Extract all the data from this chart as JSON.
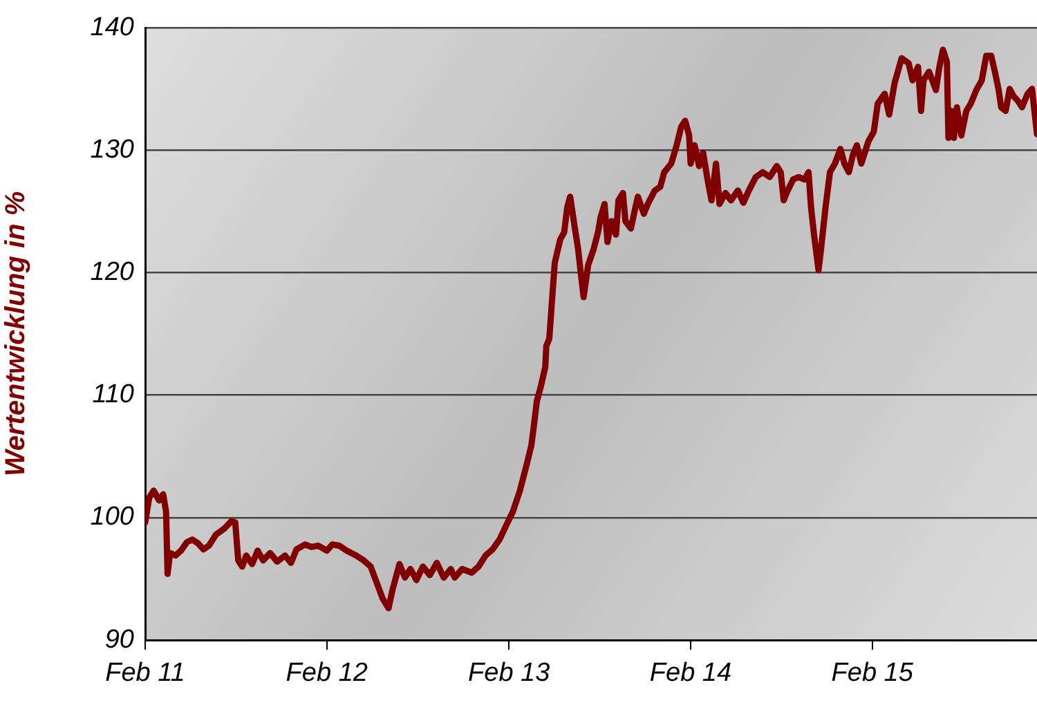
{
  "chart_data": {
    "type": "line",
    "ylabel": "Wertentwicklung in %",
    "x": [
      "2011-02-01",
      "2011-02-09",
      "2011-02-18",
      "2011-03-01",
      "2011-03-09",
      "2011-03-15",
      "2011-03-18",
      "2011-03-23",
      "2011-04-03",
      "2011-04-14",
      "2011-04-26",
      "2011-05-07",
      "2011-05-18",
      "2011-05-29",
      "2011-06-09",
      "2011-06-23",
      "2011-07-10",
      "2011-07-24",
      "2011-08-01",
      "2011-08-07",
      "2011-08-15",
      "2011-08-23",
      "2011-09-04",
      "2011-09-15",
      "2011-09-26",
      "2011-10-10",
      "2011-10-24",
      "2011-11-09",
      "2011-11-21",
      "2011-12-02",
      "2011-12-19",
      "2012-01-01",
      "2012-01-15",
      "2012-02-01",
      "2012-02-12",
      "2012-02-26",
      "2012-03-12",
      "2012-03-31",
      "2012-04-15",
      "2012-04-29",
      "2012-05-12",
      "2012-05-23",
      "2012-06-04",
      "2012-06-12",
      "2012-06-26",
      "2012-07-07",
      "2012-07-18",
      "2012-07-30",
      "2012-08-12",
      "2012-08-26",
      "2012-09-09",
      "2012-09-23",
      "2012-10-07",
      "2012-10-15",
      "2012-10-30",
      "2012-11-18",
      "2012-12-02",
      "2012-12-16",
      "2012-12-30",
      "2013-01-13",
      "2013-01-27",
      "2013-02-09",
      "2013-02-23",
      "2013-03-09",
      "2013-03-18",
      "2013-03-24",
      "2013-03-29",
      "2013-04-06",
      "2013-04-15",
      "2013-04-17",
      "2013-04-23",
      "2013-04-29",
      "2013-05-04",
      "2013-05-15",
      "2013-05-23",
      "2013-05-29",
      "2013-06-04",
      "2013-06-12",
      "2013-06-20",
      "2013-06-26",
      "2013-07-01",
      "2013-07-10",
      "2013-07-21",
      "2013-07-30",
      "2013-08-04",
      "2013-08-12",
      "2013-08-18",
      "2013-08-26",
      "2013-09-04",
      "2013-09-09",
      "2013-09-18",
      "2013-09-23",
      "2013-10-04",
      "2013-10-13",
      "2013-10-18",
      "2013-10-30",
      "2013-11-07",
      "2013-11-21",
      "2013-12-02",
      "2013-12-10",
      "2013-12-24",
      "2014-01-04",
      "2014-01-13",
      "2014-01-21",
      "2014-01-29",
      "2014-02-01",
      "2014-02-09",
      "2014-02-18",
      "2014-02-26",
      "2014-03-07",
      "2014-03-15",
      "2014-03-24",
      "2014-03-31",
      "2014-04-12",
      "2014-04-23",
      "2014-05-07",
      "2014-05-18",
      "2014-05-29",
      "2014-06-12",
      "2014-06-26",
      "2014-07-10",
      "2014-07-24",
      "2014-08-01",
      "2014-08-07",
      "2014-08-15",
      "2014-08-26",
      "2014-09-06",
      "2014-09-18",
      "2014-09-26",
      "2014-10-01",
      "2014-10-07",
      "2014-10-16",
      "2014-10-21",
      "2014-10-30",
      "2014-11-08",
      "2014-11-18",
      "2014-11-29",
      "2014-12-07",
      "2014-12-16",
      "2014-12-24",
      "2015-01-01",
      "2015-01-10",
      "2015-01-24",
      "2015-02-04",
      "2015-02-12",
      "2015-02-26",
      "2015-03-07",
      "2015-03-18",
      "2015-04-01",
      "2015-04-15",
      "2015-04-23",
      "2015-05-04",
      "2015-05-10",
      "2015-05-15",
      "2015-05-26",
      "2015-06-09",
      "2015-06-15",
      "2015-06-23",
      "2015-07-01",
      "2015-07-04",
      "2015-07-10",
      "2015-07-15",
      "2015-07-21",
      "2015-07-30",
      "2015-08-09",
      "2015-08-18",
      "2015-08-29",
      "2015-09-09",
      "2015-09-18",
      "2015-09-28",
      "2015-10-07",
      "2015-10-13",
      "2015-10-18",
      "2015-10-27",
      "2015-11-04",
      "2015-11-12",
      "2015-11-21",
      "2015-11-29",
      "2015-12-10",
      "2015-12-19",
      "2015-12-29"
    ],
    "series": [
      {
        "color": "#800000",
        "values": [
          99.6,
          101.6,
          102.2,
          101.4,
          101.9,
          100.5,
          95.4,
          97.1,
          96.9,
          97.3,
          98.0,
          98.2,
          97.9,
          97.4,
          97.7,
          98.6,
          99.1,
          99.7,
          99.6,
          96.5,
          96.0,
          96.9,
          96.2,
          97.3,
          96.5,
          97.1,
          96.4,
          96.9,
          96.3,
          97.4,
          97.8,
          97.6,
          97.7,
          97.3,
          97.8,
          97.7,
          97.3,
          96.9,
          96.5,
          96.0,
          94.6,
          93.4,
          92.6,
          94.1,
          96.2,
          95.1,
          95.8,
          94.9,
          96.0,
          95.3,
          96.3,
          95.1,
          95.8,
          95.1,
          95.8,
          95.5,
          96.0,
          96.9,
          97.4,
          98.2,
          99.4,
          100.5,
          102.2,
          104.4,
          105.9,
          107.8,
          109.5,
          110.7,
          112.3,
          114.0,
          114.6,
          118.0,
          120.8,
          122.7,
          123.3,
          125.3,
          126.2,
          124.0,
          121.9,
          119.7,
          118.0,
          120.6,
          121.9,
          123.3,
          124.5,
          125.6,
          122.5,
          124.2,
          123.1,
          125.9,
          126.5,
          124.2,
          123.6,
          125.3,
          126.2,
          124.8,
          125.6,
          126.7,
          127.0,
          128.2,
          128.9,
          130.4,
          131.9,
          132.4,
          131.2,
          128.9,
          130.4,
          128.7,
          129.8,
          127.6,
          125.9,
          128.9,
          125.6,
          126.5,
          125.9,
          126.7,
          125.7,
          126.7,
          127.8,
          128.2,
          127.8,
          128.7,
          128.2,
          125.9,
          126.7,
          127.6,
          127.8,
          127.6,
          128.2,
          125.3,
          123.1,
          120.2,
          121.9,
          125.3,
          128.2,
          128.9,
          130.1,
          128.9,
          128.2,
          129.6,
          130.4,
          128.9,
          130.7,
          131.5,
          133.8,
          134.6,
          132.9,
          135.5,
          137.5,
          137.1,
          135.7,
          136.8,
          133.2,
          135.7,
          136.4,
          134.9,
          136.6,
          138.2,
          137.2,
          131.0,
          133.2,
          131.0,
          133.5,
          131.2,
          133.2,
          133.8,
          134.9,
          135.7,
          137.7,
          137.7,
          136.1,
          134.9,
          133.5,
          133.2,
          135.0,
          134.4,
          134.0,
          133.5,
          134.6,
          135.0,
          131.3
        ]
      }
    ],
    "xlim": [
      "2011-02-01",
      "2015-12-29"
    ],
    "xticks": [
      {
        "value": "2011-02",
        "label": "Feb 11"
      },
      {
        "value": "2012-02",
        "label": "Feb 12"
      },
      {
        "value": "2013-02",
        "label": "Feb 13"
      },
      {
        "value": "2014-02",
        "label": "Feb 14"
      },
      {
        "value": "2015-02",
        "label": "Feb 15"
      }
    ],
    "ylim": [
      90,
      140
    ],
    "yticks": [
      90,
      100,
      110,
      120,
      130,
      140
    ],
    "grid": "y",
    "marker": "none",
    "line_style": "solid",
    "legend": false
  }
}
